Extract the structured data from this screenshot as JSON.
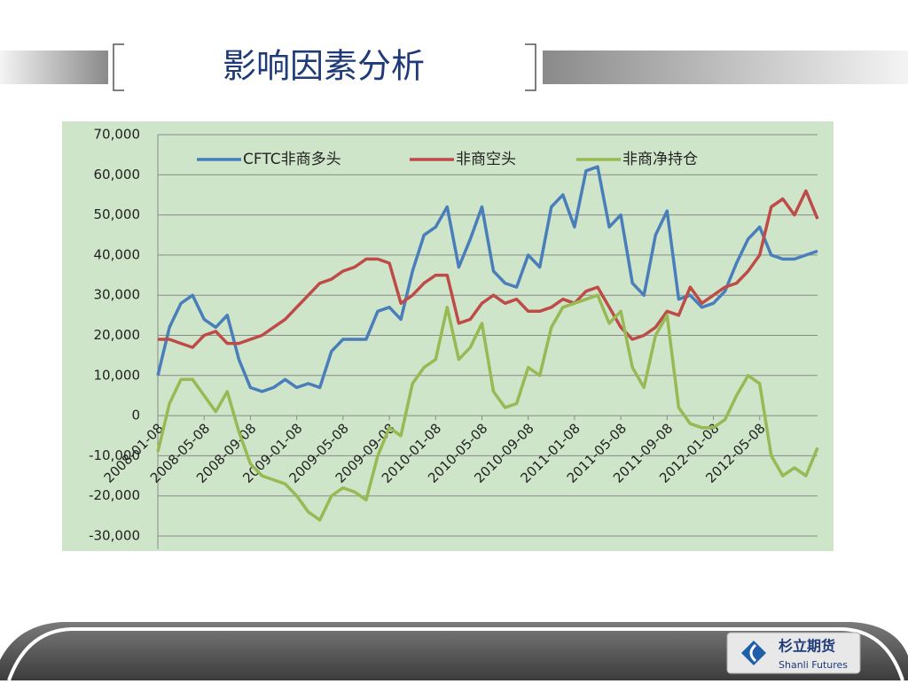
{
  "slide": {
    "title": "影响因素分析",
    "logo": {
      "name": "杉立期货",
      "subtitle": "Shanli Futures"
    }
  },
  "chart_data": {
    "type": "line",
    "legend": "top",
    "grid": true,
    "categories": [
      "2008-01-08",
      null,
      null,
      null,
      "2008-05-08",
      null,
      null,
      null,
      "2008-09-08",
      null,
      null,
      null,
      "2009-01-08",
      null,
      null,
      null,
      "2009-05-08",
      null,
      null,
      null,
      "2009-09-08",
      null,
      null,
      null,
      "2010-01-08",
      null,
      null,
      null,
      "2010-05-08",
      null,
      null,
      null,
      "2010-09-08",
      null,
      null,
      null,
      "2011-01-08",
      null,
      null,
      null,
      "2011-05-08",
      null,
      null,
      null,
      "2011-09-08",
      null,
      null,
      null,
      "2012-01-08",
      null,
      null,
      null,
      "2012-05-08",
      null,
      null,
      null,
      null,
      null
    ],
    "ylim": [
      -30000,
      70000
    ],
    "yticks": [
      {
        "value": -30000,
        "label": "-30,000"
      },
      {
        "value": -20000,
        "label": "-20,000"
      },
      {
        "value": -10000,
        "label": "-10,000"
      },
      0,
      {
        "value": 10000,
        "label": "10,000"
      },
      {
        "value": 20000,
        "label": "20,000"
      },
      {
        "value": 30000,
        "label": "30,000"
      },
      {
        "value": 40000,
        "label": "40,000"
      },
      {
        "value": 50000,
        "label": "50,000"
      },
      {
        "value": 60000,
        "label": "60,000"
      },
      {
        "value": 70000,
        "label": "70,000"
      }
    ],
    "series": [
      {
        "name": "CFTC非商多头",
        "color": "#4a7ebb",
        "values": [
          10000,
          22000,
          28000,
          30000,
          24000,
          22000,
          25000,
          14000,
          7000,
          6000,
          7000,
          9000,
          7000,
          8000,
          7000,
          16000,
          19000,
          19000,
          19000,
          26000,
          27000,
          24000,
          36000,
          45000,
          47000,
          52000,
          37000,
          44000,
          52000,
          36000,
          33000,
          32000,
          40000,
          37000,
          52000,
          55000,
          47000,
          61000,
          62000,
          47000,
          50000,
          33000,
          30000,
          45000,
          51000,
          29000,
          30000,
          27000,
          28000,
          31000,
          38000,
          44000,
          47000,
          40000,
          39000,
          39000,
          40000,
          41000
        ]
      },
      {
        "name": "非商空头",
        "color": "#be4b48",
        "values": [
          19000,
          19000,
          18000,
          17000,
          20000,
          21000,
          18000,
          18000,
          19000,
          20000,
          22000,
          24000,
          27000,
          30000,
          33000,
          34000,
          36000,
          37000,
          39000,
          39000,
          38000,
          28000,
          30000,
          33000,
          35000,
          35000,
          23000,
          24000,
          28000,
          30000,
          28000,
          29000,
          26000,
          26000,
          27000,
          29000,
          28000,
          31000,
          32000,
          27000,
          22000,
          19000,
          20000,
          22000,
          26000,
          25000,
          32000,
          28000,
          30000,
          32000,
          33000,
          36000,
          40000,
          52000,
          54000,
          50000,
          56000,
          49000
        ]
      },
      {
        "name": "非商净持仓",
        "color": "#98b954",
        "values": [
          -9000,
          3000,
          9000,
          9000,
          5000,
          1000,
          6000,
          -4000,
          -12000,
          -15000,
          -16000,
          -17000,
          -20000,
          -24000,
          -26000,
          -20000,
          -18000,
          -19000,
          -21000,
          -10000,
          -3000,
          -5000,
          8000,
          12000,
          14000,
          27000,
          14000,
          17000,
          23000,
          6000,
          2000,
          3000,
          12000,
          10000,
          22000,
          27000,
          28000,
          29000,
          30000,
          23000,
          26000,
          12000,
          7000,
          20000,
          25000,
          2000,
          -2000,
          -3000,
          -3000,
          -1000,
          5000,
          10000,
          8000,
          -10000,
          -15000,
          -13000,
          -15000,
          -8000
        ]
      }
    ]
  }
}
